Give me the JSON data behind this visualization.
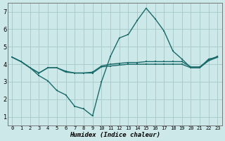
{
  "xlabel": "Humidex (Indice chaleur)",
  "ylabel": "",
  "bg_color": "#cce8e8",
  "grid_color": "#aacccc",
  "line_color": "#1a6b6b",
  "xlim_min": -0.5,
  "xlim_max": 23.5,
  "ylim_min": 0.5,
  "ylim_max": 7.5,
  "xticks": [
    0,
    1,
    2,
    3,
    4,
    5,
    6,
    7,
    8,
    9,
    10,
    11,
    12,
    13,
    14,
    15,
    16,
    17,
    18,
    19,
    20,
    21,
    22,
    23
  ],
  "yticks": [
    1,
    2,
    3,
    4,
    5,
    6,
    7
  ],
  "line1_x": [
    0,
    1,
    2,
    3,
    4,
    5,
    6,
    7,
    8,
    9,
    10,
    11,
    12,
    13,
    14,
    15,
    16,
    17,
    18,
    19,
    20,
    21,
    22,
    23
  ],
  "line1_y": [
    4.4,
    4.15,
    3.8,
    3.35,
    3.05,
    2.5,
    2.25,
    1.6,
    1.45,
    1.05,
    3.0,
    4.45,
    5.5,
    5.7,
    6.5,
    7.2,
    6.6,
    5.9,
    4.75,
    4.3,
    3.8,
    3.8,
    4.3,
    4.4
  ],
  "line2_x": [
    0,
    1,
    2,
    3,
    4,
    5,
    6,
    7,
    8,
    9,
    10,
    11,
    12,
    13,
    14,
    15,
    16,
    17,
    18,
    19,
    20,
    21,
    22,
    23
  ],
  "line2_y": [
    4.4,
    4.15,
    3.8,
    3.5,
    3.8,
    3.8,
    3.6,
    3.5,
    3.5,
    3.55,
    3.9,
    4.0,
    4.05,
    4.1,
    4.1,
    4.15,
    4.15,
    4.15,
    4.15,
    4.15,
    3.85,
    3.85,
    4.25,
    4.45
  ],
  "line3_x": [
    0,
    1,
    2,
    3,
    4,
    5,
    6,
    7,
    8,
    9,
    10,
    11,
    12,
    13,
    14,
    15,
    16,
    17,
    18,
    19,
    20,
    21,
    22,
    23
  ],
  "line3_y": [
    4.4,
    4.15,
    3.8,
    3.5,
    3.8,
    3.8,
    3.55,
    3.5,
    3.5,
    3.5,
    3.85,
    3.9,
    3.95,
    4.0,
    4.0,
    4.0,
    4.0,
    4.0,
    4.0,
    4.0,
    3.8,
    3.8,
    4.2,
    4.4
  ],
  "xlabel_fontsize": 6.5,
  "tick_fontsize_x": 5.0,
  "tick_fontsize_y": 6.0
}
